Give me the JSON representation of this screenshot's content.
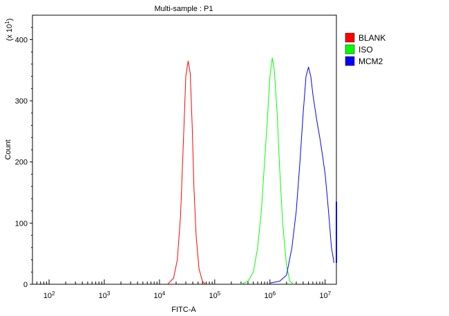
{
  "chart_data": {
    "type": "line",
    "title": "Multi-sample : P1",
    "xlabel": "FITC-A",
    "ylabel": "Count",
    "y_multiplier": "(x 10",
    "y_multiplier_exp": "1",
    "y_multiplier_close": ")",
    "x_scale": "log",
    "xlim": [
      50,
      16000000
    ],
    "ylim": [
      0,
      440
    ],
    "x_ticks": [
      {
        "value": 100,
        "base": "10",
        "exp": "2"
      },
      {
        "value": 1000,
        "base": "10",
        "exp": "3"
      },
      {
        "value": 10000,
        "base": "10",
        "exp": "4"
      },
      {
        "value": 100000,
        "base": "10",
        "exp": "5"
      },
      {
        "value": 1000000,
        "base": "10",
        "exp": "6"
      },
      {
        "value": 10000000,
        "base": "10",
        "exp": "7"
      }
    ],
    "y_ticks": [
      "0",
      "100",
      "200",
      "300",
      "400"
    ],
    "y_tick_values": [
      0,
      100,
      200,
      300,
      400
    ],
    "legend_position": "right",
    "series": [
      {
        "name": "BLANK",
        "color": "#ff0000",
        "x": [
          14000,
          18000,
          21000,
          24000,
          27000,
          30000,
          33000,
          36000,
          39000,
          42000,
          46000,
          52000,
          60000,
          68000
        ],
        "y": [
          0,
          10,
          40,
          110,
          230,
          340,
          365,
          345,
          260,
          160,
          80,
          25,
          5,
          0
        ]
      },
      {
        "name": "ISO",
        "color": "#00ff00",
        "x": [
          300000,
          400000,
          500000,
          600000,
          700000,
          800000,
          900000,
          1000000,
          1100000,
          1200000,
          1350000,
          1500000,
          1700000,
          2000000,
          2300000,
          2700000
        ],
        "y": [
          0,
          5,
          20,
          60,
          120,
          200,
          270,
          340,
          370,
          350,
          280,
          190,
          100,
          30,
          5,
          0
        ]
      },
      {
        "name": "MCM2",
        "color": "#0000ff",
        "x": [
          1000000,
          1500000,
          2000000,
          2500000,
          3000000,
          3500000,
          4000000,
          4500000,
          5000000,
          5500000,
          6000000,
          7000000,
          8000000,
          9000000,
          10000000,
          11000000,
          12000000,
          13000000,
          14500000
        ],
        "y": [
          2,
          5,
          15,
          60,
          120,
          200,
          280,
          340,
          355,
          340,
          310,
          270,
          240,
          210,
          180,
          140,
          100,
          60,
          35
        ]
      }
    ]
  }
}
